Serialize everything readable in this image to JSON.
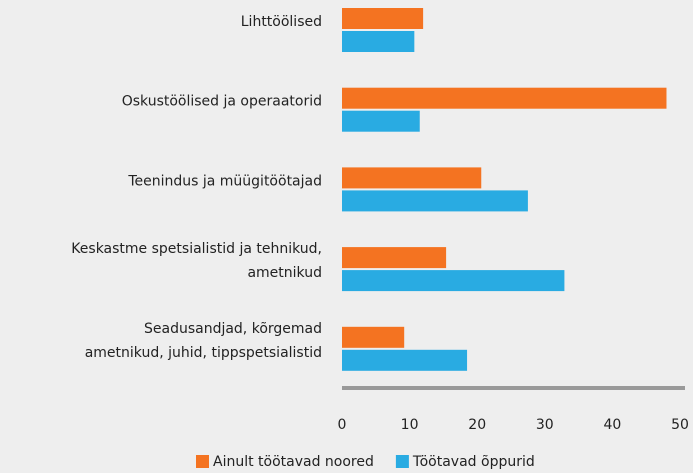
{
  "chart_data": {
    "type": "hbar",
    "categories": [
      [
        "Lihttöölised"
      ],
      [
        "Oskustöölised ja operaatorid"
      ],
      [
        "Teenindus ja müügitöötajad"
      ],
      [
        "Keskastme spetsialistid ja tehnikud,",
        "ametnikud"
      ],
      [
        "Seadusandjad, kõrgemad",
        "ametnikud, juhid, tippspetsialistid"
      ]
    ],
    "series": [
      {
        "name": "Ainult töötavad noored",
        "color": "#f47321",
        "values": [
          12,
          48,
          20.6,
          15.4,
          9.2
        ]
      },
      {
        "name": "Töötavad õppurid",
        "color": "#29abe2",
        "values": [
          10.7,
          11.5,
          27.5,
          32.9,
          18.5
        ]
      }
    ],
    "xlim": [
      0,
      50
    ],
    "xticks": [
      0,
      10,
      20,
      30,
      40,
      50
    ],
    "grid": false,
    "legend": "bottom"
  }
}
